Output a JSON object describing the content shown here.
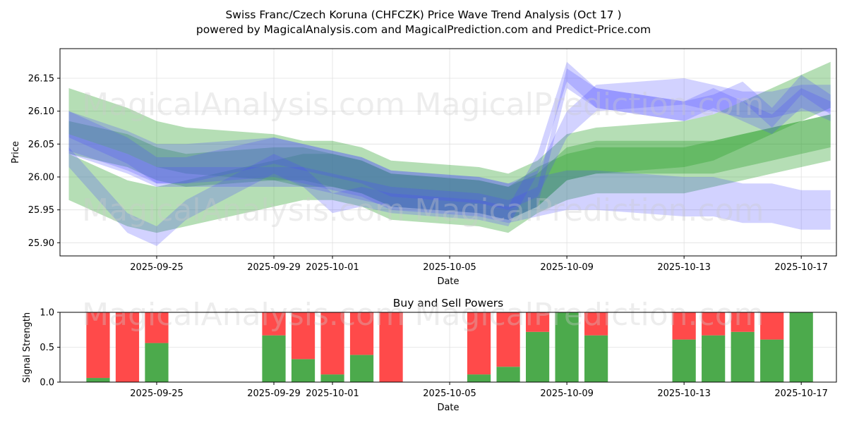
{
  "figure": {
    "title_line1": "Swiss Franc/Czech Koruna (CHFCZK) Price Wave Trend Analysis (Oct 17 )",
    "title_line2": "powered by MagicalAnalysis.com and MagicalPrediction.com and Predict-Price.com",
    "watermarks": [
      "MagicalAnalysis.com",
      "MagicalPrediction.com"
    ],
    "colors": {
      "green": "#2ca02c",
      "blue": "#4a4aff",
      "buy": "#4caa4c",
      "sell": "#ff4a4a",
      "grid": "#e0e0e0"
    }
  },
  "chart_data": [
    {
      "type": "area",
      "title": "",
      "xlabel": "Date",
      "ylabel": "Price",
      "x_ticks": [
        "2025-09-25",
        "2025-09-29",
        "2025-10-01",
        "2025-10-05",
        "2025-10-09",
        "2025-10-13",
        "2025-10-17"
      ],
      "y_ticks": [
        "25.90",
        "25.95",
        "26.00",
        "26.05",
        "26.10",
        "26.15"
      ],
      "xlim": [
        "2025-09-21.7",
        "2025-10-18.2"
      ],
      "ylim": [
        25.88,
        26.195
      ],
      "grid": true,
      "x": [
        "2025-09-22",
        "2025-09-24",
        "2025-09-25",
        "2025-09-26",
        "2025-09-29",
        "2025-09-30",
        "2025-10-01",
        "2025-10-02",
        "2025-10-03",
        "2025-10-06",
        "2025-10-07",
        "2025-10-08",
        "2025-10-09",
        "2025-10-10",
        "2025-10-13",
        "2025-10-14",
        "2025-10-15",
        "2025-10-16",
        "2025-10-17",
        "2025-10-18"
      ],
      "series": [
        {
          "color": "green",
          "center": [
            26.1,
            26.07,
            26.05,
            26.04,
            26.03,
            26.02,
            26.02,
            26.01,
            25.99,
            25.98,
            25.97,
            25.99,
            26.03,
            26.04,
            26.05,
            26.06,
            26.08,
            26.1,
            26.12,
            26.14
          ],
          "width": 0.07
        },
        {
          "color": "green",
          "center": [
            26.0,
            25.96,
            25.95,
            25.96,
            25.99,
            26.0,
            26.0,
            25.99,
            25.97,
            25.96,
            25.95,
            25.98,
            26.0,
            26.01,
            26.01,
            26.02,
            26.03,
            26.04,
            26.05,
            26.06
          ],
          "width": 0.07
        },
        {
          "color": "green",
          "center": [
            26.06,
            26.04,
            26.02,
            26.01,
            26.02,
            26.02,
            26.01,
            26.0,
            25.98,
            25.97,
            25.96,
            25.98,
            26.02,
            26.03,
            26.03,
            26.03,
            26.04,
            26.05,
            26.06,
            26.07
          ],
          "width": 0.05
        },
        {
          "color": "blue",
          "center": [
            26.07,
            26.04,
            26.02,
            26.02,
            26.03,
            26.02,
            26.01,
            26.0,
            25.98,
            25.97,
            25.96,
            25.97,
            25.98,
            25.98,
            25.97,
            25.97,
            25.96,
            25.96,
            25.95,
            25.95
          ],
          "width": 0.06
        },
        {
          "color": "blue",
          "center": [
            26.08,
            26.04,
            26.01,
            26.01,
            26.04,
            26.03,
            26.02,
            26.01,
            25.99,
            25.98,
            25.97,
            25.99,
            26.08,
            26.12,
            26.13,
            26.12,
            26.11,
            26.11,
            26.12,
            26.12
          ],
          "width": 0.04
        },
        {
          "color": "blue",
          "center": [
            26.05,
            26.02,
            26.0,
            26.0,
            26.0,
            26.0,
            25.99,
            25.98,
            25.97,
            25.96,
            25.95,
            25.97,
            26.15,
            26.12,
            26.1,
            26.12,
            26.1,
            26.08,
            26.12,
            26.1
          ],
          "width": 0.03
        },
        {
          "color": "blue",
          "center": [
            26.03,
            25.93,
            25.91,
            25.95,
            26.02,
            26.0,
            25.96,
            25.97,
            25.96,
            25.95,
            25.94,
            26.02,
            26.16,
            26.12,
            26.1,
            26.11,
            26.13,
            26.09,
            26.14,
            26.11
          ],
          "width": 0.03
        }
      ]
    },
    {
      "type": "bar",
      "title": "Buy and Sell Powers",
      "xlabel": "Date",
      "ylabel": "Signal Strength",
      "x_ticks": [
        "2025-09-25",
        "2025-09-29",
        "2025-10-01",
        "2025-10-05",
        "2025-10-09",
        "2025-10-13",
        "2025-10-17"
      ],
      "y_ticks": [
        "0.0",
        "0.5",
        "1.0"
      ],
      "ylim": [
        0,
        1
      ],
      "categories": [
        "2025-09-23",
        "2025-09-24",
        "2025-09-25",
        "2025-09-29",
        "2025-09-30",
        "2025-10-01",
        "2025-10-02",
        "2025-10-03",
        "2025-10-06",
        "2025-10-07",
        "2025-10-08",
        "2025-10-09",
        "2025-10-10",
        "2025-10-13",
        "2025-10-14",
        "2025-10-15",
        "2025-10-16",
        "2025-10-17"
      ],
      "series": [
        {
          "name": "Buy",
          "color": "buy",
          "values": [
            0.06,
            0.0,
            0.56,
            0.67,
            0.33,
            0.11,
            0.39,
            0.0,
            0.11,
            0.22,
            0.72,
            1.0,
            0.67,
            0.61,
            0.67,
            0.72,
            0.61,
            1.0
          ]
        },
        {
          "name": "Sell",
          "color": "sell",
          "values": [
            0.94,
            1.0,
            0.44,
            0.33,
            0.67,
            0.89,
            0.61,
            1.0,
            0.89,
            0.78,
            0.28,
            0.0,
            0.33,
            0.39,
            0.33,
            0.28,
            0.39,
            0.0
          ]
        }
      ]
    }
  ]
}
